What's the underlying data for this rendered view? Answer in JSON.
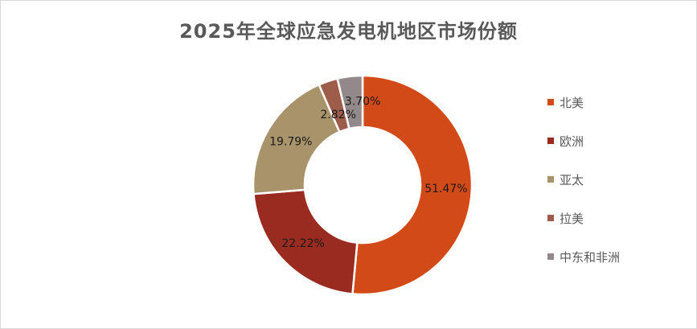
{
  "chart_data": {
    "type": "pie",
    "title": "2025年全球应急发电机地区市场份额",
    "categories": [
      "北美",
      "欧洲",
      "亚太",
      "拉美",
      "中东和非洲"
    ],
    "values": [
      51.47,
      22.22,
      19.79,
      2.82,
      3.7
    ],
    "data_labels": [
      "51.47%",
      "22.22%",
      "19.79%",
      "2.82%",
      "3.70%"
    ],
    "colors": [
      "#d24a17",
      "#992b20",
      "#a8936b",
      "#9e5d4b",
      "#93888a"
    ],
    "donut": true,
    "legend_position": "right"
  }
}
